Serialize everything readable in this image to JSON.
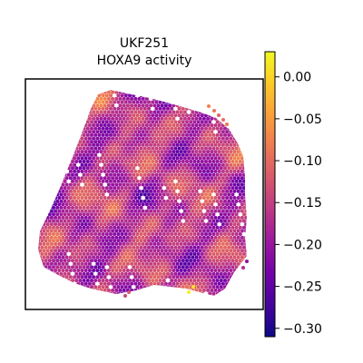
{
  "chart_data": {
    "type": "heatmap",
    "title_lines": [
      "UKF251",
      "HOXA9 activity"
    ],
    "colormap": "plasma",
    "colorbar": {
      "min": -0.31,
      "max": 0.03,
      "ticks": [
        0.0,
        -0.05,
        -0.1,
        -0.15,
        -0.2,
        -0.25,
        -0.3
      ],
      "tick_labels": [
        "0.00",
        "−0.05",
        "−0.10",
        "−0.15",
        "−0.20",
        "−0.25",
        "−0.30"
      ]
    },
    "grid": false,
    "legend": "colorbar-right"
  },
  "colors": {
    "plasma_stops": [
      "#0d0887",
      "#46039f",
      "#7201a8",
      "#9c179e",
      "#bd3786",
      "#d8576b",
      "#ed7953",
      "#fb9f3a",
      "#fdca26",
      "#f0f921"
    ]
  }
}
